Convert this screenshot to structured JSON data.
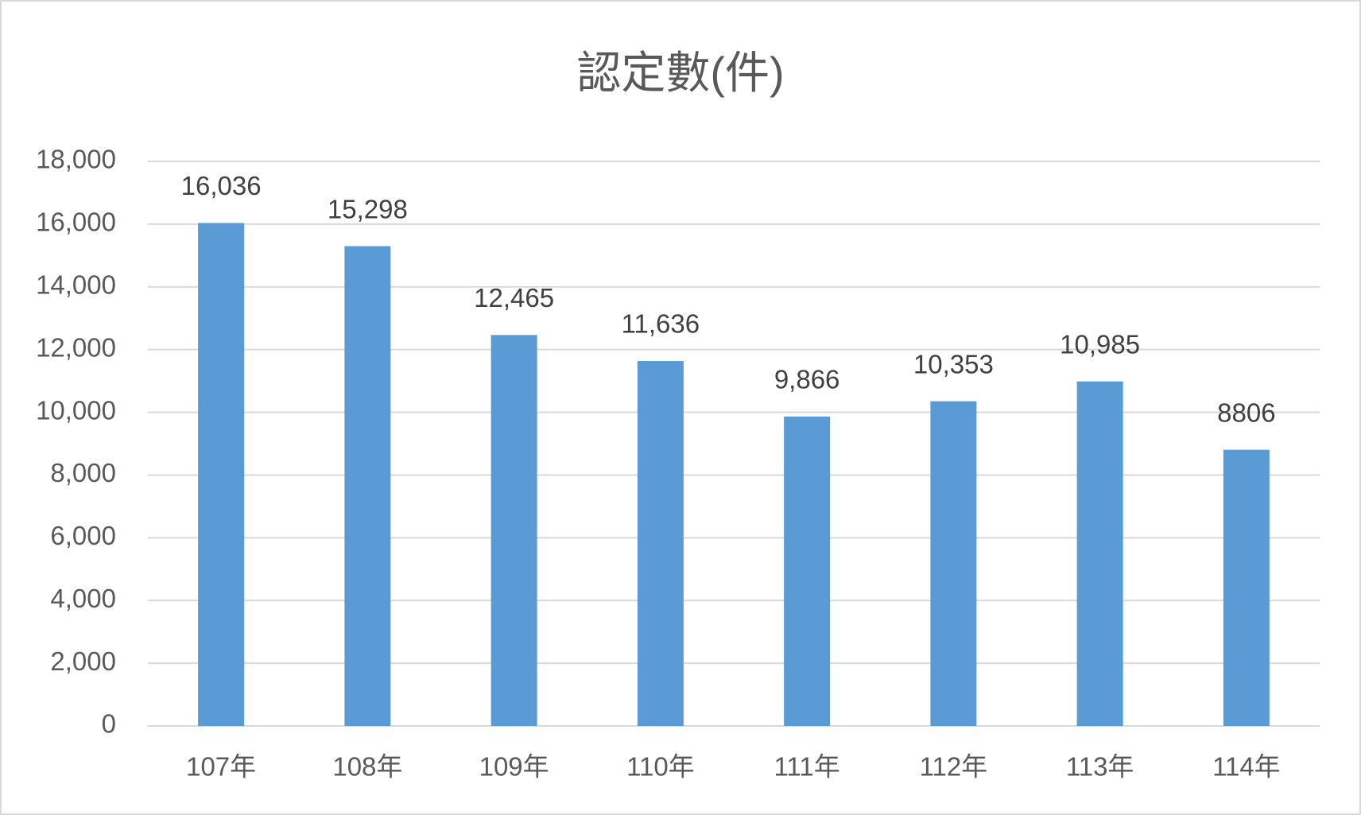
{
  "chart_data": {
    "type": "bar",
    "title": "認定數(件)",
    "categories": [
      "107年",
      "108年",
      "109年",
      "110年",
      "111年",
      "112年",
      "113年",
      "114年"
    ],
    "values": [
      16036,
      15298,
      12465,
      11636,
      9866,
      10353,
      10985,
      8806
    ],
    "value_labels": [
      "16,036",
      "15,298",
      "12,465",
      "11,636",
      "9,866",
      "10,353",
      "10,985",
      "8806"
    ],
    "color": "#5b9bd5",
    "ylim": [
      0,
      18000
    ],
    "yticks": [
      0,
      {
        "value": 2000,
        "label": "2,000"
      },
      {
        "value": 4000,
        "label": "4,000"
      },
      {
        "value": 6000,
        "label": "6,000"
      },
      {
        "value": 8000,
        "label": "8,000"
      },
      {
        "value": 10000,
        "label": "10,000"
      },
      {
        "value": 12000,
        "label": "12,000"
      },
      {
        "value": 14000,
        "label": "14,000"
      },
      {
        "value": 16000,
        "label": "16,000"
      },
      {
        "value": 18000,
        "label": "18,000"
      }
    ],
    "grid": true
  }
}
